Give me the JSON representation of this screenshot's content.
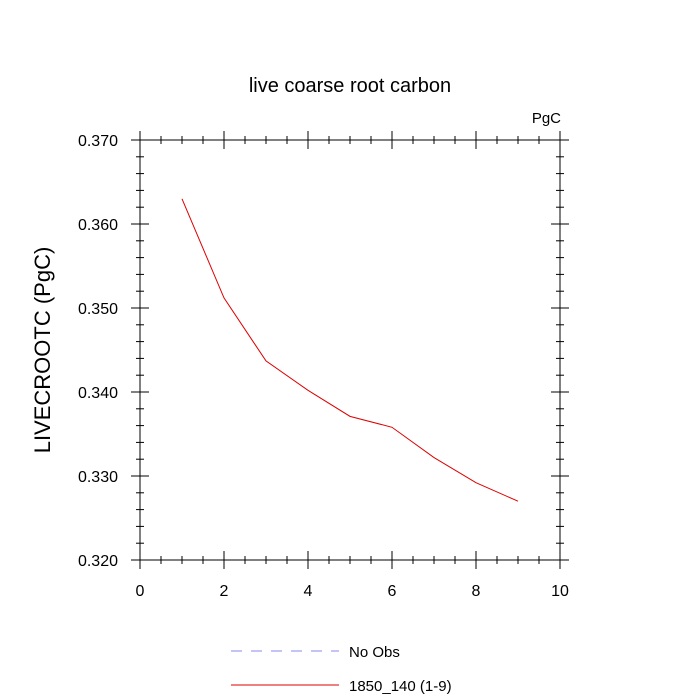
{
  "chart_data": {
    "type": "line",
    "title": "live coarse root carbon",
    "units_label": "PgC",
    "xlabel": "",
    "ylabel": "LIVECROOTC  (PgC)",
    "xlim": [
      0,
      10
    ],
    "ylim": [
      0.32,
      0.37
    ],
    "x_ticks": [
      0,
      2,
      4,
      6,
      8,
      10
    ],
    "x_tick_labels": [
      "0",
      "2",
      "4",
      "6",
      "8",
      "10"
    ],
    "y_ticks": [
      0.32,
      0.33,
      0.34,
      0.35,
      0.36,
      0.37
    ],
    "y_tick_labels": [
      "0.320",
      "0.330",
      "0.340",
      "0.350",
      "0.360",
      "0.370"
    ],
    "grid": false,
    "legend_position": "bottom",
    "series": [
      {
        "name": "No Obs",
        "color": "#8888ee",
        "dash": "dashed",
        "x": [],
        "y": []
      },
      {
        "name": "1850_140 (1-9)",
        "color": "#dd0000",
        "dash": "solid",
        "x": [
          1,
          2,
          3,
          4,
          5,
          6,
          7,
          8,
          9
        ],
        "y": [
          0.363,
          0.3512,
          0.3437,
          0.3402,
          0.3371,
          0.3358,
          0.3322,
          0.3292,
          0.327
        ]
      }
    ]
  }
}
